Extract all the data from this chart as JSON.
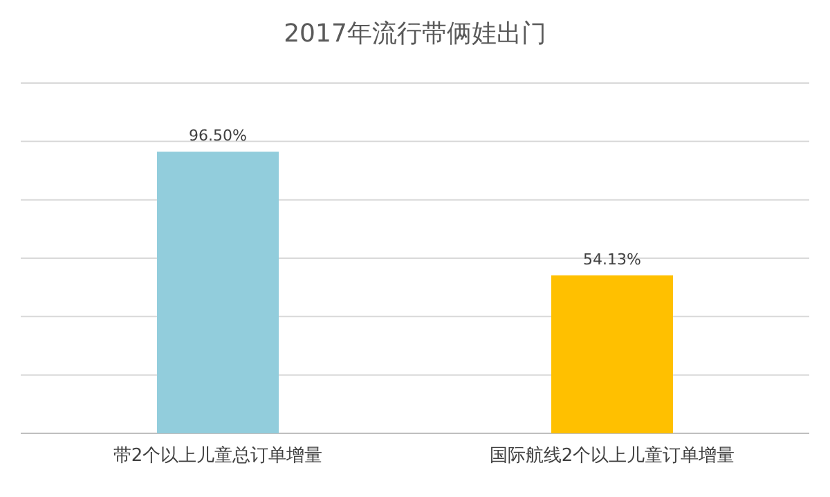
{
  "chart_data": {
    "type": "bar",
    "title": "2017年流行带俩娃出门",
    "categories": [
      "带2个以上儿童总订单增量",
      "国际航线2个以上儿童订单增量"
    ],
    "values": [
      96.5,
      54.13
    ],
    "value_labels": [
      "96.50%",
      "54.13%"
    ],
    "colors": [
      "#92cddc",
      "#ffc000"
    ],
    "ylim": [
      0,
      120
    ],
    "yticks": [
      {
        "value": 0,
        "label": null
      },
      {
        "value": 20,
        "label": null
      },
      {
        "value": 40,
        "label": null
      },
      {
        "value": 60,
        "label": null
      },
      {
        "value": 80,
        "label": null
      },
      {
        "value": 100,
        "label": null
      },
      {
        "value": 120,
        "label": null
      }
    ],
    "grid": "y",
    "tick_labels": "x"
  }
}
